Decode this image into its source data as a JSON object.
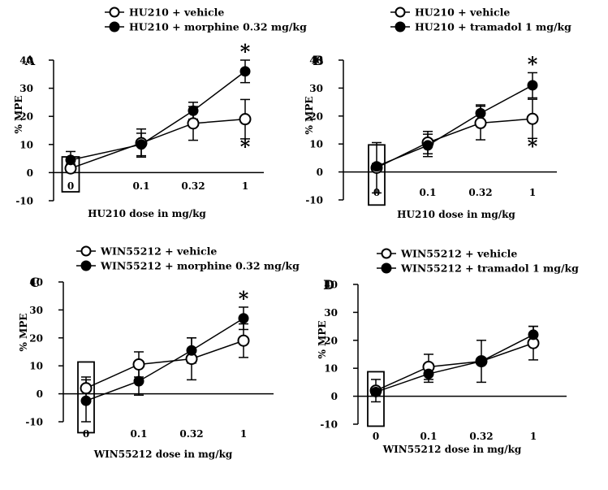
{
  "chart_data": [
    {
      "panel": "A",
      "type": "line",
      "categories": [
        "0",
        "0.1",
        "0.32",
        "1"
      ],
      "xlabel": "HU210 dose in mg/kg",
      "ylabel": "% MPE",
      "ylim": [
        -10,
        40
      ],
      "yticks": [
        "-10",
        "0",
        "10",
        "20",
        "30",
        "40"
      ],
      "series": [
        {
          "name": "HU210 + vehicle",
          "marker": "open-circle",
          "values": [
            1.5,
            10.5,
            17.5,
            19
          ],
          "errors": [
            1.5,
            5,
            6,
            7
          ]
        },
        {
          "name": "HU210 + morphine 0.32 mg/kg",
          "marker": "filled-circle",
          "values": [
            4.5,
            10,
            22,
            36
          ],
          "errors": [
            3,
            4,
            3,
            4
          ]
        }
      ],
      "annotations": [
        {
          "text": "*",
          "category": "1",
          "series": "HU210 + morphine 0.32 mg/kg",
          "position": "above"
        },
        {
          "text": "*",
          "category": "1",
          "series": "HU210 + vehicle",
          "position": "below"
        }
      ]
    },
    {
      "panel": "B",
      "type": "line",
      "categories": [
        "0",
        "0.1",
        "0.32",
        "1"
      ],
      "xlabel": "HU210 dose in mg/kg",
      "ylabel": "% MPE",
      "ylim": [
        -10,
        40
      ],
      "yticks": [
        "-10",
        "0",
        "10",
        "20",
        "30",
        "40"
      ],
      "series": [
        {
          "name": "HU210 + vehicle",
          "marker": "open-circle",
          "values": [
            1.5,
            10.5,
            17.5,
            19
          ],
          "errors": [
            9,
            4,
            6,
            7
          ]
        },
        {
          "name": "HU210 + tramadol 1 mg/kg",
          "marker": "filled-circle",
          "values": [
            2,
            9.5,
            21,
            31
          ],
          "errors": [
            1,
            4,
            3,
            4.5
          ]
        }
      ],
      "annotations": [
        {
          "text": "*",
          "category": "1",
          "series": "HU210 + tramadol 1 mg/kg",
          "position": "above"
        },
        {
          "text": "*",
          "category": "1",
          "series": "HU210 + vehicle",
          "position": "below"
        }
      ]
    },
    {
      "panel": "C",
      "type": "line",
      "categories": [
        "0",
        "0.1",
        "0.32",
        "1"
      ],
      "xlabel": "WIN55212 dose in mg/kg",
      "ylabel": "% MPE",
      "ylim": [
        -10,
        40
      ],
      "yticks": [
        "-10",
        "0",
        "10",
        "20",
        "30",
        "40"
      ],
      "series": [
        {
          "name": "WIN55212 + vehicle",
          "marker": "open-circle",
          "values": [
            2,
            10.5,
            12.5,
            19
          ],
          "errors": [
            4,
            4.5,
            7.5,
            6
          ]
        },
        {
          "name": "WIN55212 + morphine 0.32 mg/kg",
          "marker": "filled-circle",
          "values": [
            -2.5,
            4.5,
            15.5,
            27
          ],
          "errors": [
            7.5,
            5,
            4.5,
            4
          ]
        }
      ],
      "annotations": [
        {
          "text": "*",
          "category": "1",
          "series": "WIN55212 + morphine 0.32 mg/kg",
          "position": "above"
        }
      ]
    },
    {
      "panel": "D",
      "type": "line",
      "categories": [
        "0",
        "0.1",
        "0.32",
        "1"
      ],
      "xlabel": "WIN55212 dose in mg/kg",
      "ylabel": "% MPE",
      "ylim": [
        -10,
        40
      ],
      "yticks": [
        "-10",
        "0",
        "10",
        "20",
        "30",
        "40"
      ],
      "series": [
        {
          "name": "WIN55212 + vehicle",
          "marker": "open-circle",
          "values": [
            2,
            10.5,
            12.5,
            19
          ],
          "errors": [
            4,
            4.5,
            7.5,
            6
          ]
        },
        {
          "name": "WIN55212 + tramadol 1 mg/kg",
          "marker": "filled-circle",
          "values": [
            1.5,
            8,
            12.5,
            22
          ],
          "errors": [
            1,
            3,
            1,
            3
          ]
        }
      ],
      "annotations": []
    }
  ]
}
